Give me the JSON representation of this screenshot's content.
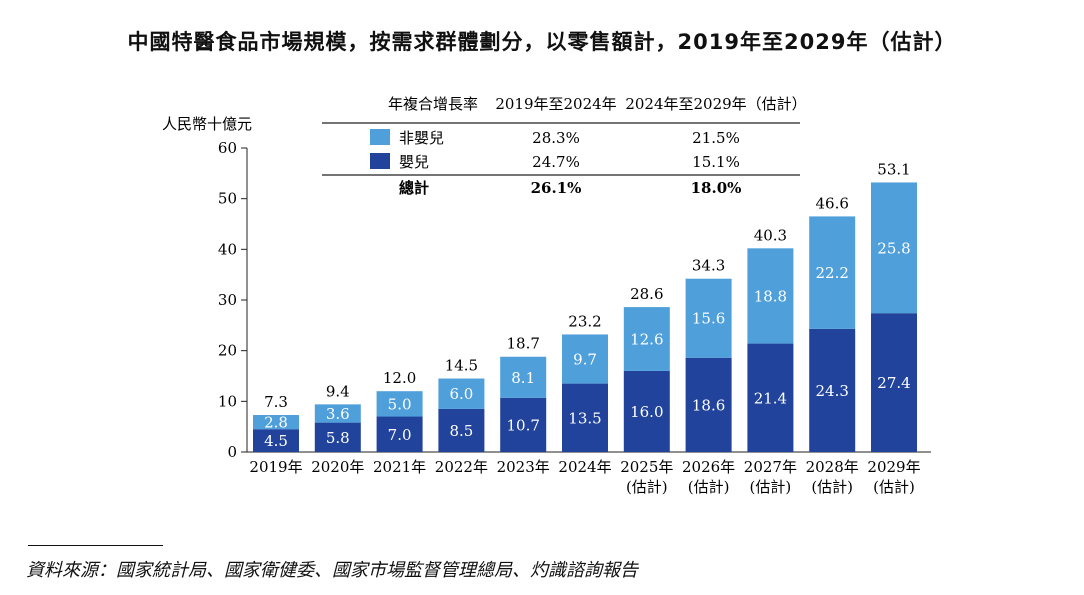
{
  "title": "中國特醫食品市場規模，按需求群體劃分，以零售額計，2019年至2029年（估計）",
  "colors": {
    "non_infant": "#4f9fdb",
    "infant": "#21439b",
    "axis": "#222222",
    "label_on_bar": "#ffffff"
  },
  "table": {
    "header_label": "年複合增長率",
    "col1_header": "2019年至2024年",
    "col2_header": "2024年至2029年（估計）",
    "rows": [
      {
        "label": "非嬰兒",
        "col1": "28.3%",
        "col2": "21.5%",
        "swatch": "non_infant"
      },
      {
        "label": "嬰兒",
        "col1": "24.7%",
        "col2": "15.1%",
        "swatch": "infant"
      }
    ],
    "total": {
      "label": "總計",
      "col1": "26.1%",
      "col2": "18.0%"
    }
  },
  "chart_data": {
    "type": "bar",
    "stacked": true,
    "ylabel": "人民幣十億元",
    "ylim": [
      0,
      60
    ],
    "yticks": [
      0,
      10,
      20,
      30,
      40,
      50,
      60
    ],
    "categories": [
      "2019年",
      "2020年",
      "2021年",
      "2022年",
      "2023年",
      "2024年",
      "2025年",
      "2026年",
      "2027年",
      "2028年",
      "2029年"
    ],
    "category_sublabels": [
      "",
      "",
      "",
      "",
      "",
      "",
      "(估計)",
      "(估計)",
      "(估計)",
      "(估計)",
      "(估計)"
    ],
    "series": [
      {
        "name": "嬰兒",
        "color_key": "infant",
        "values": [
          4.5,
          5.8,
          7.0,
          8.5,
          10.7,
          13.5,
          16.0,
          18.6,
          21.4,
          24.3,
          27.4
        ]
      },
      {
        "name": "非嬰兒",
        "color_key": "non_infant",
        "values": [
          2.8,
          3.6,
          5.0,
          6.0,
          8.1,
          9.7,
          12.6,
          15.6,
          18.8,
          22.2,
          25.8
        ]
      }
    ],
    "totals": [
      7.3,
      9.4,
      12.0,
      14.5,
      18.7,
      23.2,
      28.6,
      34.3,
      40.3,
      46.6,
      53.1
    ]
  },
  "source": "資料來源：國家統計局、國家衛健委、國家市場監督管理總局、灼識諮詢報告"
}
